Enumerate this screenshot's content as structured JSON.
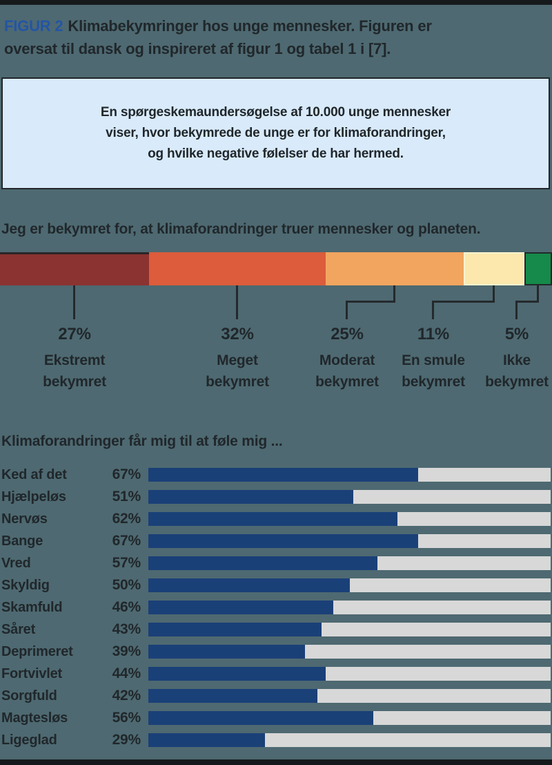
{
  "page": {
    "background_color": "#4e6971",
    "top_bar_color": "#16191b",
    "bottom_bar_color": "#16191b",
    "text_color": "#20272b"
  },
  "title": {
    "tag": "FIGUR 2",
    "tag_color": "#2355a6",
    "line1": "Klimabekymringer hos unge mennesker. Figuren er",
    "line2": "oversat til dansk og inspireret af figur 1 og tabel 1 i [7]."
  },
  "info_box": {
    "background_color": "#d9eafa",
    "lines": [
      "En spørgeskemaundersøgelse af 10.000 unge mennesker",
      "viser, hvor bekymrede de unge er for klimaforandringer,",
      "og hvilke negative følelser de har hermed."
    ]
  },
  "chart_data": [
    {
      "type": "bar",
      "variant": "stacked-horizontal",
      "title": "Jeg er bekymret for, at klimaforandringer truer mennesker og planeten.",
      "unit": "%",
      "xlim": [
        0,
        100
      ],
      "segments": [
        {
          "label": "Ekstremt bekymret",
          "label_lines": [
            "Ekstremt",
            "bekymret"
          ],
          "pct_label": "27%",
          "value": 27,
          "color": "#8a3330"
        },
        {
          "label": "Meget bekymret",
          "label_lines": [
            "Meget",
            "bekymret"
          ],
          "pct_label": "32%",
          "value": 32,
          "color": "#dc5c3c"
        },
        {
          "label": "Moderat bekymret",
          "label_lines": [
            "Moderat",
            "bekymret"
          ],
          "pct_label": "25%",
          "value": 25,
          "color": "#f2a55f"
        },
        {
          "label": "En smule bekymret",
          "label_lines": [
            "En smule",
            "bekymret"
          ],
          "pct_label": "11%",
          "value": 11,
          "color": "#fce8ad"
        },
        {
          "label": "Ikke bekymret",
          "label_lines": [
            "Ikke",
            "bekymret"
          ],
          "pct_label": "5%",
          "value": 5,
          "color": "#158a4a"
        }
      ]
    },
    {
      "type": "bar",
      "variant": "horizontal",
      "title": "Klimaforandringer får mig til at føle mig ...",
      "unit": "%",
      "xlim": [
        0,
        100
      ],
      "bar_color": "#1a4078",
      "track_color": "#d8d8d8",
      "categories": [
        "Ked af det",
        "Hjælpeløs",
        "Nervøs",
        "Bange",
        "Vred",
        "Skyldig",
        "Skamfuld",
        "Såret",
        "Deprimeret",
        "Fortvivlet",
        "Sorgfuld",
        "Magtesløs",
        "Ligeglad"
      ],
      "values": [
        67,
        51,
        62,
        67,
        57,
        50,
        46,
        43,
        39,
        44,
        42,
        56,
        29
      ],
      "value_labels": [
        "67%",
        "51%",
        "62%",
        "67%",
        "57%",
        "50%",
        "46%",
        "43%",
        "39%",
        "44%",
        "42%",
        "56%",
        "29%"
      ]
    }
  ]
}
